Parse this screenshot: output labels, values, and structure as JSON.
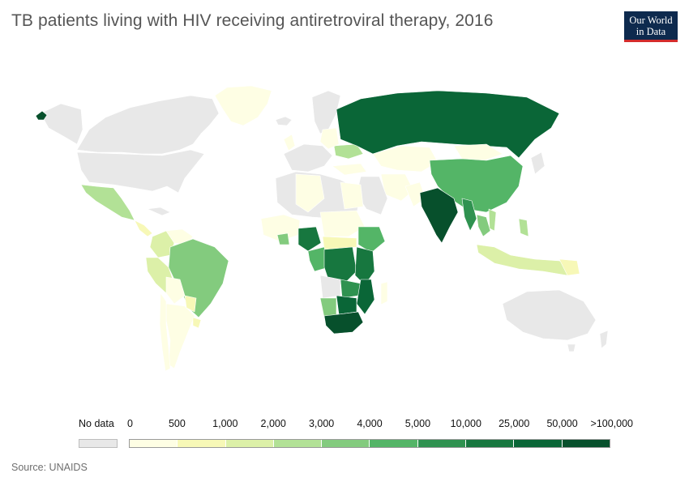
{
  "title": "TB patients living with HIV receiving antiretroviral therapy, 2016",
  "logo": {
    "line1": "Our World",
    "line2": "in Data"
  },
  "source": "Source: UNAIDS",
  "legend": {
    "no_data_label": "No data",
    "no_data_color": "#e8e8e8",
    "ticks": [
      "0",
      "500",
      "1,000",
      "2,000",
      "3,000",
      "4,000",
      "5,000",
      "10,000",
      "25,000",
      "50,000",
      ">100,000"
    ],
    "colors": [
      "#fefee4",
      "#f7f8b7",
      "#dcf0a8",
      "#b2e196",
      "#83cb7e",
      "#54b567",
      "#2f9250",
      "#17773f",
      "#0a6637",
      "#07502c"
    ]
  },
  "colors": {
    "no_data": "#e8e8e8",
    "border": "#ffffff"
  }
}
